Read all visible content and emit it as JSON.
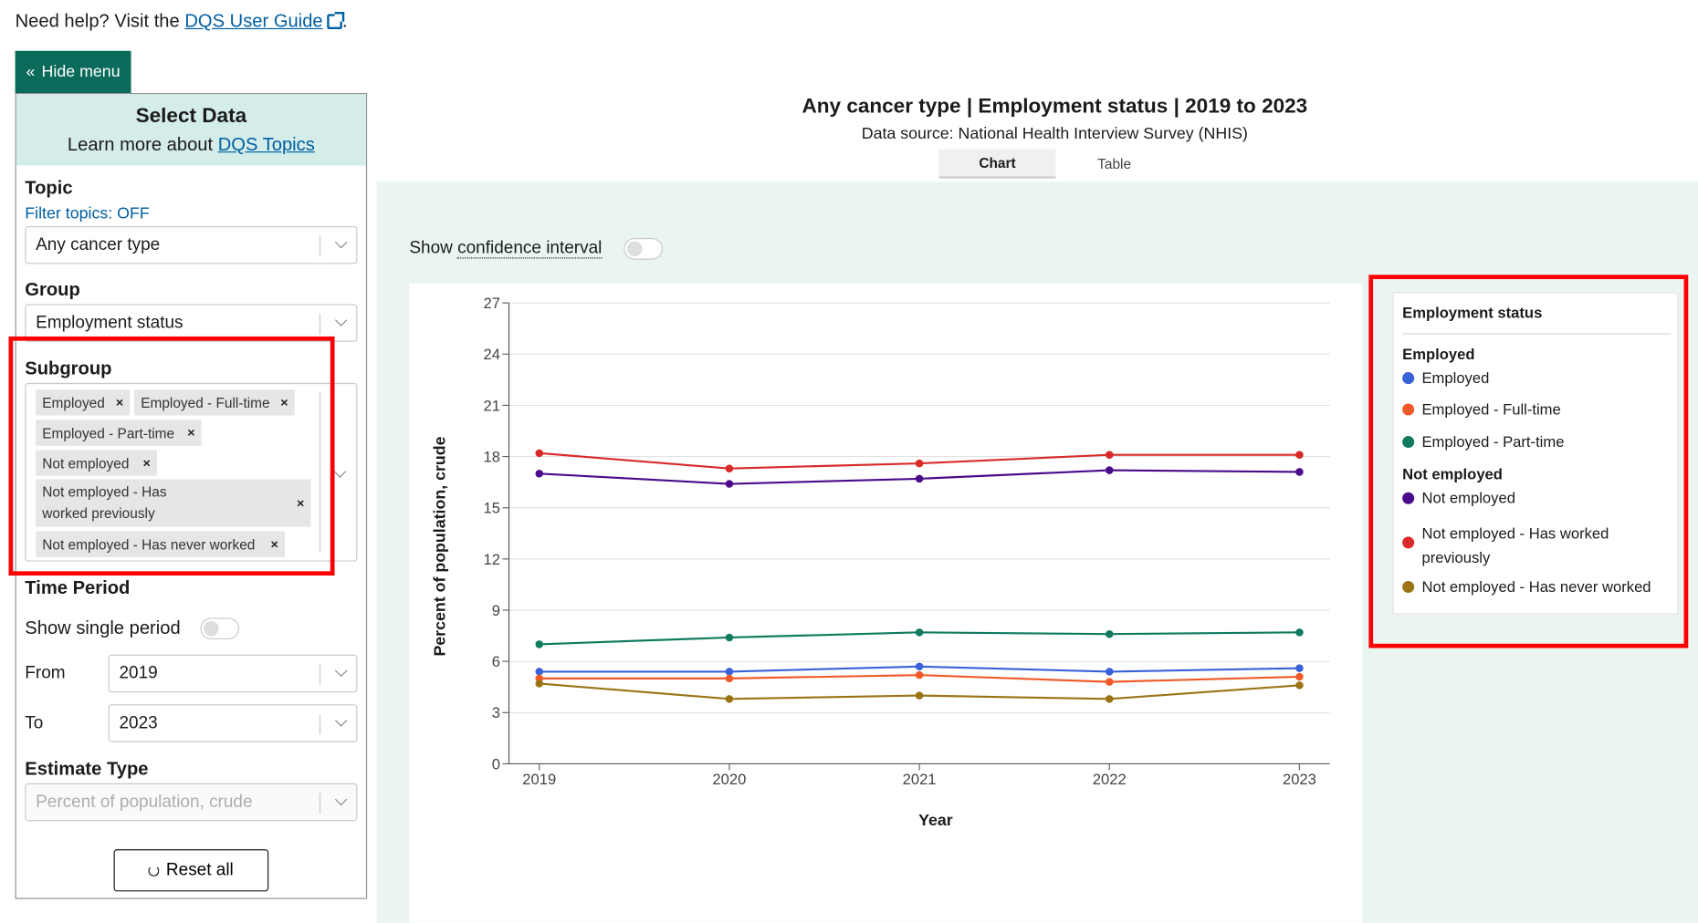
{
  "help": {
    "text": "Need help? Visit the ",
    "link": "DQS User Guide",
    "suffix": "."
  },
  "hide_menu": {
    "icon": "double-chevron-left",
    "label": "Hide menu"
  },
  "sidebar": {
    "title": "Select Data",
    "learn_prefix": "Learn more about ",
    "learn_link": "DQS Topics",
    "topic_label": "Topic",
    "filter_topics": "Filter topics: OFF",
    "topic_value": "Any cancer type",
    "group_label": "Group",
    "group_value": "Employment status",
    "subgroup_label": "Subgroup",
    "subgroups": [
      "Employed",
      "Employed - Full-time",
      "Employed - Part-time",
      "Not employed",
      "Not employed - Has worked previously",
      "Not employed - Has never worked"
    ],
    "time_label": "Time Period",
    "single_period": "Show single period",
    "from_label": "From",
    "from_value": "2019",
    "to_label": "To",
    "to_value": "2023",
    "estimate_label": "Estimate Type",
    "estimate_value": "Percent of population, crude",
    "reset_label": "Reset all"
  },
  "chart_header": {
    "title": "Any cancer type | Employment status | 2019 to 2023",
    "source": "Data source: National Health Interview Survey (NHIS)",
    "tabs": [
      "Chart",
      "Table"
    ],
    "ci_prefix": "Show ",
    "ci_link": "confidence interval"
  },
  "legend": {
    "title": "Employment status",
    "groups": [
      {
        "name": "Employed",
        "items": [
          {
            "label": "Employed",
            "color": "#3a62d8"
          },
          {
            "label": "Employed - Full-time",
            "color": "#f05a28"
          },
          {
            "label": "Employed - Part-time",
            "color": "#0f7b5f"
          }
        ]
      },
      {
        "name": "Not employed",
        "items": [
          {
            "label": "Not employed",
            "color": "#4b0a8a"
          },
          {
            "label": "Not employed - Has worked previously",
            "color": "#d92a2a"
          },
          {
            "label": "Not employed - Has never worked",
            "color": "#9a7414"
          }
        ]
      }
    ]
  },
  "chart_data": {
    "type": "line",
    "xlabel": "Year",
    "ylabel": "Percent of population, crude",
    "x": [
      "2019",
      "2020",
      "2021",
      "2022",
      "2023"
    ],
    "ylim": [
      0,
      27
    ],
    "yticks": [
      0,
      3,
      6,
      9,
      12,
      15,
      18,
      21,
      24,
      27
    ],
    "grid": true,
    "series": [
      {
        "name": "Employed",
        "color": "#3a62d8",
        "values": [
          5.4,
          5.4,
          5.7,
          5.4,
          5.6
        ]
      },
      {
        "name": "Employed - Full-time",
        "color": "#f05a28",
        "values": [
          5.0,
          5.0,
          5.2,
          4.8,
          5.1
        ]
      },
      {
        "name": "Employed - Part-time",
        "color": "#0f7b5f",
        "values": [
          7.0,
          7.4,
          7.7,
          7.6,
          7.7
        ]
      },
      {
        "name": "Not employed",
        "color": "#4b0a8a",
        "values": [
          17.0,
          16.4,
          16.7,
          17.2,
          17.1
        ]
      },
      {
        "name": "Not employed - Has worked previously",
        "color": "#d92a2a",
        "values": [
          18.2,
          17.3,
          17.6,
          18.1,
          18.1
        ]
      },
      {
        "name": "Not employed - Has never worked",
        "color": "#9a7414",
        "values": [
          4.7,
          3.8,
          4.0,
          3.8,
          4.6
        ]
      }
    ]
  }
}
